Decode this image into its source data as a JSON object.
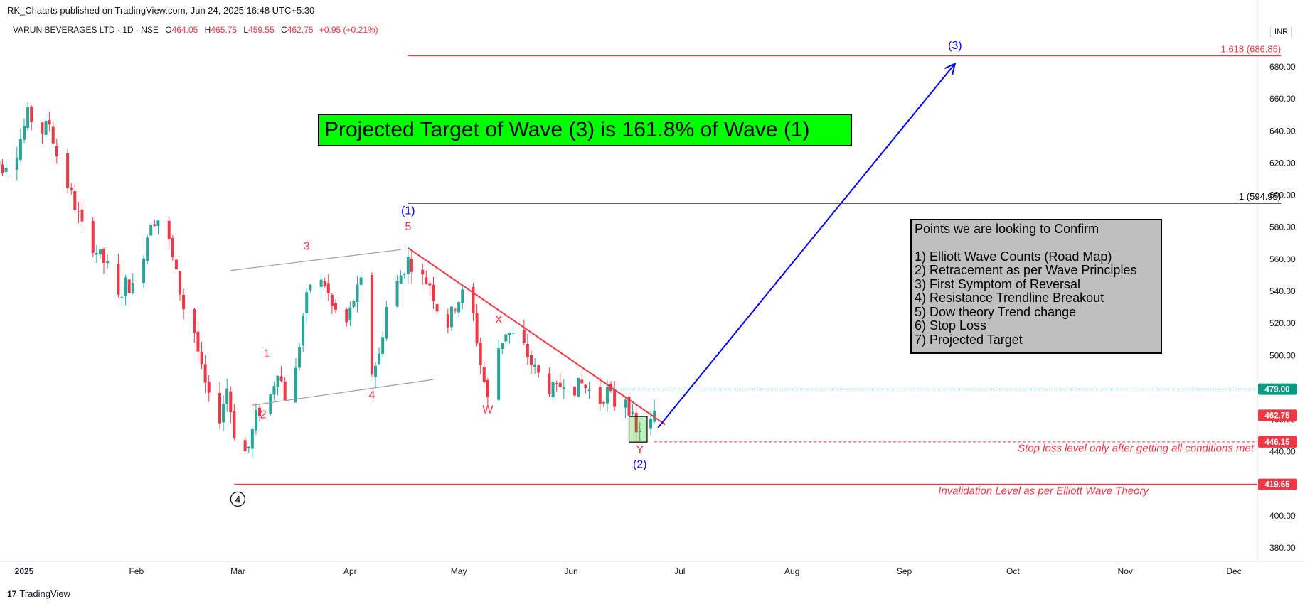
{
  "header": {
    "publisher": "RK_Chaarts published on TradingView.com, Jun 24, 2025 16:48 UTC+5:30",
    "symbol": "VARUN BEVERAGES LTD · 1D · NSE",
    "open_label": "O",
    "open": "464.05",
    "high_label": "H",
    "high": "465.75",
    "low_label": "L",
    "low": "459.55",
    "close_label": "C",
    "close": "462.75",
    "change": "+0.95 (+0.21%)",
    "currency": "INR"
  },
  "footer": {
    "brand": "TradingView",
    "logo_text": "17"
  },
  "colors": {
    "up": "#26a69a",
    "down": "#f23645",
    "projection": "#0000ff",
    "banner": "#00ff00",
    "points_box": "#bfbfbf"
  },
  "chart_data": {
    "type": "candlestick",
    "ylim": [
      370,
      700
    ],
    "yticks": [
      380,
      400,
      420,
      440,
      460,
      480,
      500,
      520,
      540,
      560,
      580,
      600,
      620,
      640,
      660,
      680
    ],
    "ytick_labels": [
      "380.00",
      "400.00",
      "420.00",
      "440.00",
      "460.00",
      "480.00",
      "500.00",
      "520.00",
      "540.00",
      "560.00",
      "580.00",
      "600.00",
      "620.00",
      "640.00",
      "660.00",
      "680.00"
    ],
    "x_start": "2024-12-23",
    "x_end": "2025-12-12",
    "xticks": [
      {
        "date": "2025-01-01",
        "label": "2025",
        "bold": true
      },
      {
        "date": "2025-02-01",
        "label": "Feb"
      },
      {
        "date": "2025-03-01",
        "label": "Mar"
      },
      {
        "date": "2025-04-01",
        "label": "Apr"
      },
      {
        "date": "2025-05-01",
        "label": "May"
      },
      {
        "date": "2025-06-01",
        "label": "Jun"
      },
      {
        "date": "2025-07-01",
        "label": "Jul"
      },
      {
        "date": "2025-08-01",
        "label": "Aug"
      },
      {
        "date": "2025-09-01",
        "label": "Sep"
      },
      {
        "date": "2025-10-01",
        "label": "Oct"
      },
      {
        "date": "2025-11-01",
        "label": "Nov"
      },
      {
        "date": "2025-12-01",
        "label": "Dec"
      }
    ],
    "price_path": [
      [
        "2024-12-23",
        622
      ],
      [
        "2024-12-26",
        618
      ],
      [
        "2024-12-30",
        628
      ],
      [
        "2025-01-02",
        650
      ],
      [
        "2025-01-06",
        640
      ],
      [
        "2025-01-08",
        645
      ],
      [
        "2025-01-10",
        625
      ],
      [
        "2025-01-14",
        600
      ],
      [
        "2025-01-17",
        580
      ],
      [
        "2025-01-21",
        565
      ],
      [
        "2025-01-24",
        555
      ],
      [
        "2025-01-27",
        535
      ],
      [
        "2025-01-29",
        545
      ],
      [
        "2025-01-31",
        542
      ],
      [
        "2025-02-03",
        565
      ],
      [
        "2025-02-05",
        585
      ],
      [
        "2025-02-07",
        585
      ],
      [
        "2025-02-10",
        570
      ],
      [
        "2025-02-12",
        550
      ],
      [
        "2025-02-14",
        530
      ],
      [
        "2025-02-17",
        515
      ],
      [
        "2025-02-19",
        490
      ],
      [
        "2025-02-21",
        472
      ],
      [
        "2025-02-24",
        462
      ],
      [
        "2025-02-26",
        480
      ],
      [
        "2025-02-28",
        452
      ],
      [
        "2025-03-03",
        440
      ],
      [
        "2025-03-04",
        443
      ],
      [
        "2025-03-06",
        462
      ],
      [
        "2025-03-10",
        475
      ],
      [
        "2025-03-12",
        492
      ],
      [
        "2025-03-14",
        475
      ],
      [
        "2025-03-17",
        490
      ],
      [
        "2025-03-19",
        525
      ],
      [
        "2025-03-21",
        545
      ],
      [
        "2025-03-25",
        545
      ],
      [
        "2025-03-27",
        530
      ],
      [
        "2025-03-31",
        520
      ],
      [
        "2025-04-02",
        535
      ],
      [
        "2025-04-04",
        545
      ],
      [
        "2025-04-07",
        490
      ],
      [
        "2025-04-09",
        500
      ],
      [
        "2025-04-11",
        530
      ],
      [
        "2025-04-15",
        550
      ],
      [
        "2025-04-17",
        560
      ],
      [
        "2025-04-21",
        548
      ],
      [
        "2025-04-23",
        545
      ],
      [
        "2025-04-25",
        530
      ],
      [
        "2025-04-28",
        520
      ],
      [
        "2025-04-30",
        532
      ],
      [
        "2025-05-02",
        538
      ],
      [
        "2025-05-05",
        525
      ],
      [
        "2025-05-07",
        495
      ],
      [
        "2025-05-09",
        472
      ],
      [
        "2025-05-12",
        505
      ],
      [
        "2025-05-14",
        515
      ],
      [
        "2025-05-16",
        512
      ],
      [
        "2025-05-19",
        505
      ],
      [
        "2025-05-21",
        495
      ],
      [
        "2025-05-23",
        488
      ],
      [
        "2025-05-26",
        480
      ],
      [
        "2025-05-28",
        478
      ],
      [
        "2025-05-30",
        485
      ],
      [
        "2025-06-02",
        480
      ],
      [
        "2025-06-04",
        482
      ],
      [
        "2025-06-06",
        478
      ],
      [
        "2025-06-09",
        472
      ],
      [
        "2025-06-11",
        478
      ],
      [
        "2025-06-13",
        470
      ],
      [
        "2025-06-16",
        475
      ],
      [
        "2025-06-18",
        460
      ],
      [
        "2025-06-19",
        450
      ],
      [
        "2025-06-20",
        455
      ],
      [
        "2025-06-23",
        458
      ],
      [
        "2025-06-24",
        462.75
      ]
    ],
    "highlight_range": {
      "start": "2025-06-17",
      "end": "2025-06-22",
      "top": 462,
      "bottom": 446
    },
    "fib_levels": [
      {
        "label": "1.618 (686.85)",
        "price": 686.85,
        "start": "2025-04-17",
        "end": "2025-12-14",
        "color": "#f23645"
      },
      {
        "label": "1 (594.95)",
        "price": 594.95,
        "start": "2025-04-17",
        "end": "2025-12-14",
        "color": "#000000"
      }
    ],
    "h_levels": [
      {
        "price": 479,
        "badge": "479.00",
        "badge_color": "#089981",
        "start": "2025-06-12",
        "style": "dashed",
        "color": "#089981"
      },
      {
        "price": 462.75,
        "badge": "462.75",
        "badge_color": "#f23645",
        "start": null,
        "style": "none",
        "color": "#f23645"
      },
      {
        "price": 446.15,
        "badge": "446.15",
        "badge_color": "#f23645",
        "start": "2025-06-24",
        "style": "dashed",
        "color": "#f23645"
      },
      {
        "price": 419.65,
        "badge": "419.65",
        "badge_color": "#f23645",
        "start": "2025-02-28",
        "style": "solid",
        "color": "#f23645"
      }
    ],
    "trendline": {
      "points": [
        [
          "2025-04-17",
          567
        ],
        [
          "2025-06-27",
          457
        ]
      ],
      "color": "#f23645"
    },
    "projection": {
      "points": [
        [
          "2025-06-25",
          455
        ],
        [
          "2025-09-15",
          682
        ]
      ],
      "color": "#0000ff"
    },
    "channel": {
      "upper": [
        [
          "2025-02-27",
          553
        ],
        [
          "2025-04-15",
          566
        ]
      ],
      "lower": [
        [
          "2025-03-05",
          469
        ],
        [
          "2025-04-24",
          485
        ]
      ],
      "color": "#9e9e9e"
    },
    "wave_labels": [
      {
        "text": "1",
        "date": "2025-03-09",
        "price": 499,
        "color": "#f23645",
        "size": 15
      },
      {
        "text": "2",
        "date": "2025-03-08",
        "price": 461,
        "color": "#f23645",
        "size": 15
      },
      {
        "text": "3",
        "date": "2025-03-20",
        "price": 566,
        "color": "#f23645",
        "size": 15
      },
      {
        "text": "4",
        "date": "2025-04-07",
        "price": 473,
        "color": "#f23645",
        "size": 15
      },
      {
        "text": "5",
        "date": "2025-04-17",
        "price": 578,
        "color": "#f23645",
        "size": 15
      },
      {
        "text": "(1)",
        "date": "2025-04-17",
        "price": 588,
        "color": "#0000ff",
        "size": 15
      },
      {
        "text": "X",
        "date": "2025-05-12",
        "price": 520,
        "color": "#f23645",
        "size": 15
      },
      {
        "text": "W",
        "date": "2025-05-09",
        "price": 464,
        "color": "#f23645",
        "size": 15
      },
      {
        "text": "Y",
        "date": "2025-06-20",
        "price": 439,
        "color": "#f23645",
        "size": 15
      },
      {
        "text": "(2)",
        "date": "2025-06-20",
        "price": 430,
        "color": "#0000ff",
        "size": 15
      },
      {
        "text": "(3)",
        "date": "2025-09-15",
        "price": 691,
        "color": "#0000ff",
        "size": 15
      }
    ],
    "circled_label": {
      "text": "4",
      "date": "2025-02-28",
      "price": 414
    },
    "annotations": [
      {
        "text": "Stop loss level only after getting all conditions met",
        "price": 440,
        "color": "#f23645"
      },
      {
        "text": "Invalidation Level  as per Elliott Wave Theory",
        "price": 413.5,
        "color": "#f23645"
      }
    ]
  },
  "banner": {
    "text": "Projected Target of Wave (3) is 161.8% of Wave (1)"
  },
  "points_box": {
    "heading": "Points we are looking to Confirm",
    "items": [
      "1) Elliott Wave Counts (Road Map)",
      "2) Retracement as per Wave Principles",
      "3) First Symptom of Reversal",
      "4) Resistance Trendline Breakout",
      "5) Dow theory Trend change",
      "6) Stop Loss",
      "7) Projected Target"
    ]
  }
}
